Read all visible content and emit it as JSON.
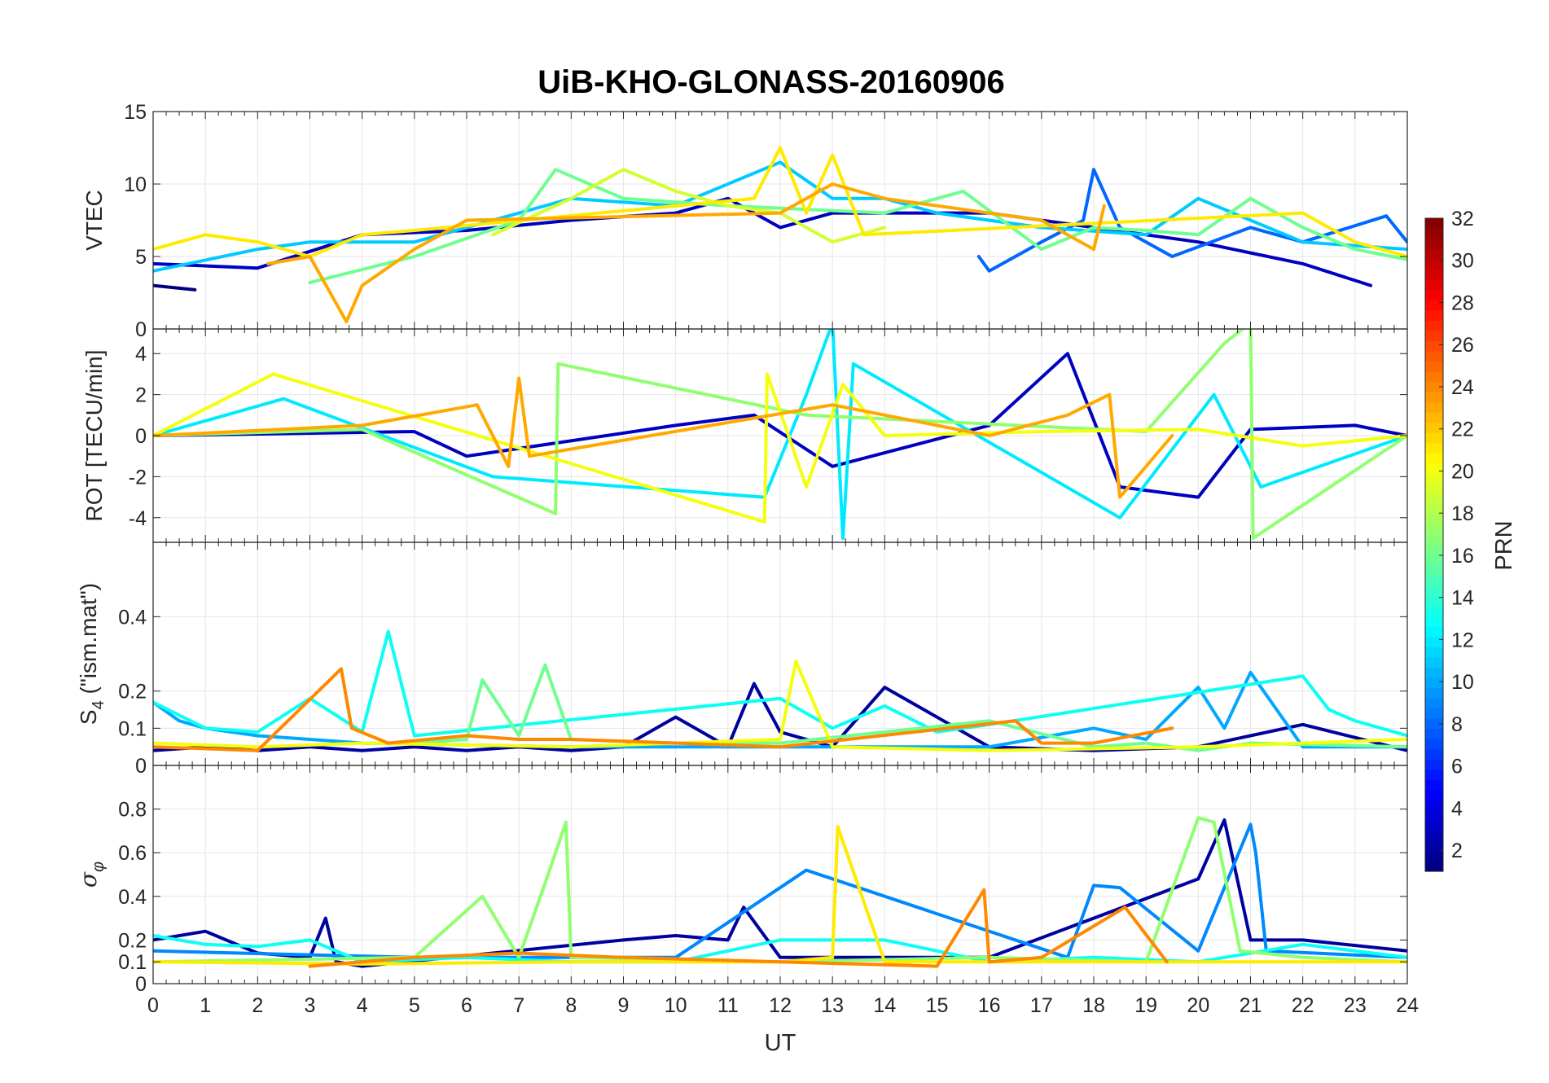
{
  "chart_data": {
    "type": "line",
    "title": "UiB-KHO-GLONASS-20160906",
    "xlabel": "UT",
    "xlim": [
      0,
      24
    ],
    "x_ticks": [
      0,
      1,
      2,
      3,
      4,
      5,
      6,
      7,
      8,
      9,
      10,
      11,
      12,
      13,
      14,
      15,
      16,
      17,
      18,
      19,
      20,
      21,
      22,
      23,
      24
    ],
    "x_tick_labels": [
      "0",
      "1",
      "2",
      "3",
      "4",
      "5",
      "6",
      "7",
      "8",
      "9",
      "10",
      "11",
      "12",
      "13",
      "14",
      "15",
      "16",
      "17",
      "18",
      "19",
      "20",
      "21",
      "22",
      "23",
      "24"
    ],
    "grid": true,
    "panels": [
      {
        "id": "vtec",
        "ylabel": "VTEC",
        "ylim": [
          0,
          15
        ],
        "y_ticks": [
          0,
          5,
          10,
          15
        ],
        "y_tick_labels": [
          "0",
          "5",
          "10",
          "15"
        ],
        "series": [
          {
            "name": "PRN 1",
            "prn": 1,
            "x": [
              0,
              0.8
            ],
            "y": [
              3.0,
              2.7
            ]
          },
          {
            "name": "PRN 3",
            "prn": 3,
            "x": [
              0,
              2,
              4,
              6,
              8,
              10,
              11,
              12,
              13,
              14,
              16,
              18,
              20,
              22,
              23.3
            ],
            "y": [
              4.5,
              4.2,
              6.5,
              6.8,
              7.5,
              8.0,
              9.0,
              7.0,
              8.0,
              8.0,
              8.0,
              7.0,
              6.0,
              4.5,
              3.0
            ]
          },
          {
            "name": "PRN 8",
            "prn": 8,
            "x": [
              15.8,
              16,
              17,
              17.8,
              18,
              18.5,
              19.5,
              21,
              22,
              23.6,
              24
            ],
            "y": [
              5.0,
              4.0,
              6.0,
              7.5,
              11.0,
              7.0,
              5.0,
              7.0,
              6.0,
              7.8,
              6.0
            ]
          },
          {
            "name": "PRN 11",
            "prn": 11,
            "x": [
              0,
              2,
              3,
              5,
              8,
              10,
              12,
              13,
              14,
              15,
              17,
              19,
              20,
              22,
              24
            ],
            "y": [
              4.0,
              5.5,
              6.0,
              6.0,
              9.0,
              8.5,
              11.5,
              9.0,
              9.0,
              8.0,
              7.0,
              6.5,
              9.0,
              6.0,
              5.5
            ]
          },
          {
            "name": "PRN 16",
            "prn": 16,
            "x": [
              3,
              5,
              7,
              7.7,
              9,
              11,
              14,
              15.5,
              17,
              18,
              19,
              20,
              21,
              22,
              23,
              24
            ],
            "y": [
              3.2,
              5.0,
              7.5,
              11.0,
              9.0,
              8.5,
              8.0,
              9.5,
              5.5,
              7.0,
              6.8,
              6.5,
              9.0,
              7.0,
              5.5,
              4.8
            ]
          },
          {
            "name": "PRN 19",
            "prn": 19,
            "x": [
              6.5,
              8,
              9,
              10,
              11,
              12,
              13,
              14
            ],
            "y": [
              6.5,
              9.0,
              11.0,
              9.5,
              8.5,
              8.0,
              6.0,
              7.0
            ]
          },
          {
            "name": "PRN 21",
            "prn": 21,
            "x": [
              0,
              1,
              2,
              3,
              4,
              5,
              11.5,
              12,
              12.5,
              13,
              13.6,
              22,
              23,
              24
            ],
            "y": [
              5.5,
              6.5,
              6.0,
              5.0,
              6.5,
              6.8,
              9.0,
              12.5,
              8.0,
              12.0,
              6.5,
              8.0,
              6.0,
              5.0
            ]
          },
          {
            "name": "PRN 23",
            "prn": 23,
            "x": [
              2.2,
              3,
              3.7,
              4,
              5,
              6,
              12,
              13,
              14,
              15,
              16,
              17,
              18,
              18.2
            ],
            "y": [
              4.5,
              5.0,
              0.5,
              3.0,
              5.5,
              7.5,
              8.0,
              10.0,
              9.0,
              8.5,
              8.0,
              7.5,
              5.5,
              8.5
            ]
          }
        ]
      },
      {
        "id": "rot",
        "ylabel": "ROT [TECU/min]",
        "ylim": [
          -5.2,
          5.2
        ],
        "y_ticks": [
          -4,
          -2,
          0,
          2,
          4
        ],
        "y_tick_labels": [
          "-4",
          "-2",
          "0",
          "2",
          "4"
        ],
        "series": [
          {
            "name": "PRN 3",
            "prn": 3,
            "x": [
              0,
              5,
              6,
              10,
              11.5,
              13,
              16,
              17.5,
              18.5,
              20,
              21,
              23,
              24
            ],
            "y": [
              0,
              0.2,
              -1.0,
              0.5,
              1.0,
              -1.5,
              0.5,
              4.0,
              -2.5,
              -3.0,
              0.3,
              0.5,
              0
            ]
          },
          {
            "name": "PRN 12",
            "prn": 12,
            "x": [
              0,
              2.5,
              6.5,
              11.7,
              12.5,
              13.0,
              13.2,
              13.4,
              18.5,
              20.3,
              21.2,
              24
            ],
            "y": [
              0,
              1.8,
              -2.0,
              -3.0,
              2.0,
              5.5,
              -5.0,
              3.5,
              -4.0,
              2.0,
              -2.5,
              0
            ]
          },
          {
            "name": "PRN 17",
            "prn": 17,
            "x": [
              0,
              4,
              7.7,
              7.75,
              12.5,
              19,
              20.5,
              21.0,
              21.05,
              24
            ],
            "y": [
              0,
              0.3,
              -3.8,
              3.5,
              1.0,
              0.2,
              4.5,
              5.5,
              -5.0,
              0
            ]
          },
          {
            "name": "PRN 20",
            "prn": 20,
            "x": [
              0,
              2.3,
              11.7,
              11.75,
              12.5,
              13.2,
              14,
              17,
              20,
              22,
              24
            ],
            "y": [
              0,
              3.0,
              -4.2,
              3.0,
              -2.5,
              2.5,
              0,
              0.2,
              0.3,
              -0.5,
              0
            ]
          },
          {
            "name": "PRN 23",
            "prn": 23,
            "x": [
              0,
              4,
              6.2,
              6.8,
              7.0,
              7.2,
              13,
              16,
              17.5,
              18.3,
              18.5,
              19.5
            ],
            "y": [
              0,
              0.5,
              1.5,
              -1.5,
              2.8,
              -1.0,
              1.5,
              0,
              1.0,
              2.0,
              -3.0,
              0
            ]
          }
        ]
      },
      {
        "id": "s4",
        "ylabel": "S",
        "ylabel_sub": "4",
        "ylabel_suffix": " (\"ism.mat\")",
        "ylim": [
          0,
          0.6
        ],
        "y_ticks": [
          0,
          0.1,
          0.2,
          0.4
        ],
        "y_tick_labels": [
          "0",
          "0.1",
          "0.2",
          "0.4"
        ],
        "series": [
          {
            "name": "PRN 2",
            "prn": 2,
            "x": [
              0,
              1,
              2,
              3,
              4,
              5,
              6,
              7,
              8,
              9,
              10,
              11,
              11.5,
              12,
              13,
              14,
              16,
              18,
              20,
              22,
              24
            ],
            "y": [
              0.04,
              0.05,
              0.04,
              0.05,
              0.04,
              0.05,
              0.04,
              0.05,
              0.04,
              0.05,
              0.13,
              0.05,
              0.22,
              0.09,
              0.05,
              0.21,
              0.05,
              0.04,
              0.05,
              0.11,
              0.04
            ]
          },
          {
            "name": "PRN 10",
            "prn": 10,
            "x": [
              0,
              0.5,
              1,
              2,
              3,
              4,
              8,
              12,
              16,
              18,
              19,
              20,
              20.5,
              21,
              22,
              24
            ],
            "y": [
              0.17,
              0.12,
              0.1,
              0.08,
              0.07,
              0.06,
              0.05,
              0.05,
              0.05,
              0.1,
              0.07,
              0.21,
              0.1,
              0.25,
              0.05,
              0.05
            ]
          },
          {
            "name": "PRN 13",
            "prn": 13,
            "x": [
              0,
              1,
              2,
              3,
              4,
              4.5,
              5,
              12,
              13,
              14,
              15,
              16,
              22,
              22.5,
              23,
              24
            ],
            "y": [
              0.17,
              0.1,
              0.09,
              0.18,
              0.09,
              0.36,
              0.08,
              0.18,
              0.1,
              0.16,
              0.09,
              0.11,
              0.24,
              0.15,
              0.12,
              0.08
            ]
          },
          {
            "name": "PRN 16",
            "prn": 16,
            "x": [
              5,
              6,
              6.3,
              7,
              7.5,
              8,
              10,
              12,
              16,
              18,
              19,
              20,
              21,
              24
            ],
            "y": [
              0.06,
              0.07,
              0.23,
              0.08,
              0.27,
              0.07,
              0.06,
              0.06,
              0.12,
              0.05,
              0.06,
              0.04,
              0.06,
              0.05
            ]
          },
          {
            "name": "PRN 20",
            "prn": 20,
            "x": [
              0,
              2,
              4,
              8,
              12,
              12.3,
              13,
              16,
              20,
              24
            ],
            "y": [
              0.06,
              0.05,
              0.06,
              0.05,
              0.07,
              0.28,
              0.05,
              0.04,
              0.05,
              0.07
            ]
          },
          {
            "name": "PRN 24",
            "prn": 24,
            "x": [
              0,
              2,
              3.6,
              3.8,
              4.5,
              6,
              7,
              8,
              12,
              16.5,
              17,
              18,
              19.5
            ],
            "y": [
              0.05,
              0.04,
              0.26,
              0.1,
              0.06,
              0.08,
              0.07,
              0.07,
              0.05,
              0.12,
              0.06,
              0.06,
              0.1
            ]
          }
        ]
      },
      {
        "id": "sigma",
        "ylabel": "σ",
        "ylabel_sub": "φ",
        "ylim": [
          0,
          1.0
        ],
        "y_ticks": [
          0,
          0.1,
          0.2,
          0.4,
          0.6,
          0.8
        ],
        "y_tick_labels": [
          "0",
          "0.1",
          "0.2",
          "0.4",
          "0.6",
          "0.8"
        ],
        "series": [
          {
            "name": "PRN 2",
            "prn": 2,
            "x": [
              0,
              1,
              2,
              3,
              3.3,
              3.5,
              4,
              9,
              10,
              11,
              11.3,
              12,
              16,
              20,
              20.5,
              21,
              22,
              24
            ],
            "y": [
              0.2,
              0.24,
              0.14,
              0.12,
              0.3,
              0.1,
              0.08,
              0.2,
              0.22,
              0.2,
              0.35,
              0.12,
              0.12,
              0.48,
              0.75,
              0.2,
              0.2,
              0.15
            ]
          },
          {
            "name": "PRN 9",
            "prn": 9,
            "x": [
              0,
              5,
              10,
              12.5,
              17.5,
              18,
              18.5,
              20,
              21,
              21.1,
              21.3,
              24
            ],
            "y": [
              0.15,
              0.12,
              0.12,
              0.52,
              0.12,
              0.45,
              0.44,
              0.15,
              0.73,
              0.6,
              0.15,
              0.12
            ]
          },
          {
            "name": "PRN 13",
            "prn": 13,
            "x": [
              0,
              1,
              2,
              3,
              4,
              6,
              8,
              10,
              12,
              14,
              16,
              18,
              20,
              22,
              24
            ],
            "y": [
              0.22,
              0.18,
              0.17,
              0.2,
              0.1,
              0.12,
              0.1,
              0.1,
              0.2,
              0.2,
              0.1,
              0.12,
              0.1,
              0.18,
              0.12
            ]
          },
          {
            "name": "PRN 17",
            "prn": 17,
            "x": [
              0,
              5,
              6.3,
              7,
              7.5,
              7.9,
              8,
              12,
              16,
              19,
              20,
              20.3,
              20.8,
              22,
              24
            ],
            "y": [
              0.1,
              0.12,
              0.4,
              0.12,
              0.46,
              0.74,
              0.12,
              0.1,
              0.12,
              0.1,
              0.76,
              0.74,
              0.15,
              0.12,
              0.1
            ]
          },
          {
            "name": "PRN 21",
            "prn": 21,
            "x": [
              0,
              4,
              8,
              12,
              13,
              13.1,
              14,
              18,
              24
            ],
            "y": [
              0.1,
              0.09,
              0.1,
              0.1,
              0.12,
              0.72,
              0.1,
              0.1,
              0.1
            ]
          },
          {
            "name": "PRN 24",
            "prn": 24,
            "x": [
              3,
              5,
              7,
              9,
              12,
              15,
              15.9,
              16,
              17,
              18.6,
              19.4
            ],
            "y": [
              0.08,
              0.12,
              0.14,
              0.12,
              0.1,
              0.08,
              0.43,
              0.1,
              0.12,
              0.35,
              0.1
            ]
          }
        ]
      }
    ],
    "colorbar": {
      "label": "PRN",
      "range": [
        1,
        32
      ],
      "ticks": [
        2,
        4,
        6,
        8,
        10,
        12,
        14,
        16,
        18,
        20,
        22,
        24,
        26,
        28,
        30,
        32
      ],
      "tick_labels": [
        "2",
        "4",
        "6",
        "8",
        "10",
        "12",
        "14",
        "16",
        "18",
        "20",
        "22",
        "24",
        "26",
        "28",
        "30",
        "32"
      ],
      "colormap": "jet"
    }
  }
}
